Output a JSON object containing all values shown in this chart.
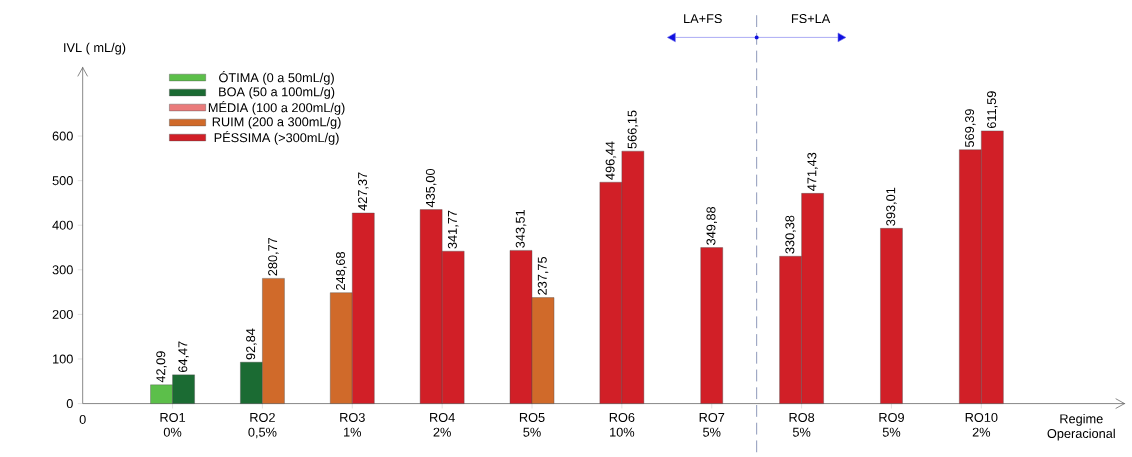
{
  "chart_data": {
    "type": "bar",
    "ylabel": "IVL ( mL/g)",
    "xlabel": "Regime Operacional",
    "categories": [
      "RO1 0%",
      "RO2 0,5%",
      "RO3 1%",
      "RO4 2%",
      "RO5 5%",
      "RO6 10%",
      "RO7 5%",
      "RO8 5%",
      "RO9 5%",
      "RO10 2%"
    ],
    "series": [
      {
        "name": "ÓTIMA (0 a 50mL/g)",
        "color": "#5cbf4a",
        "values": [
          null,
          null,
          null,
          null,
          null,
          null,
          null,
          null,
          null,
          null
        ]
      },
      {
        "name": "BOA (50 a 100mL/g)",
        "color": "#1b6b33",
        "values": [
          null,
          null,
          null,
          null,
          null,
          null,
          null,
          null,
          null,
          null
        ]
      },
      {
        "name": "MÉDIA (100 a 200mL/g)",
        "color": "#ea7b7b",
        "values": [
          null,
          null,
          null,
          null,
          null,
          null,
          null,
          null,
          null,
          null
        ]
      },
      {
        "name": "RUIM (200 a 300mL/g)",
        "color": "#d06a2a",
        "values": [
          null,
          null,
          null,
          null,
          null,
          null,
          null,
          null,
          null,
          null
        ]
      },
      {
        "name": "PÉSSIMA (>300mL/g)",
        "color": "#d11f27",
        "values": [
          null,
          null,
          null,
          null,
          null,
          null,
          null,
          null,
          null,
          null
        ]
      },
      {
        "colors": [
          "#5cbf4a",
          "#1b6b33",
          "#d06a2a",
          "#d11f27",
          "#d11f27",
          "#d11f27",
          "#d11f27",
          "#d11f27",
          "#d11f27",
          "#d11f27"
        ],
        "values": [
          42.09,
          92.84,
          248.68,
          435.0,
          343.51,
          496.44,
          349.88,
          330.38,
          393.01,
          569.39
        ],
        "value_labels": [
          "42,09",
          "92,84",
          "248,68",
          "435,00",
          "343,51",
          "496,44",
          "349,88",
          "330,38",
          "393,01",
          "569,39"
        ]
      },
      {
        "colors": [
          "#1b6b33",
          "#d06a2a",
          "#d11f27",
          "#d11f27",
          "#d06a2a",
          "#d11f27",
          null,
          "#d11f27",
          null,
          "#d11f27"
        ],
        "values": [
          64.47,
          280.77,
          427.37,
          341.77,
          237.75,
          566.15,
          null,
          471.43,
          null,
          611.59
        ],
        "value_labels": [
          "64,47",
          "280,77",
          "427,37",
          "341,77",
          "237,75",
          "566,15",
          null,
          "471,43",
          null,
          "611,59"
        ]
      }
    ],
    "ylim": [
      0,
      755
    ],
    "yticks": [
      0,
      100,
      200,
      300,
      400,
      500,
      600
    ],
    "legend": "top left",
    "annotations": [
      "0",
      "LA+FS",
      "FS+LA"
    ]
  }
}
